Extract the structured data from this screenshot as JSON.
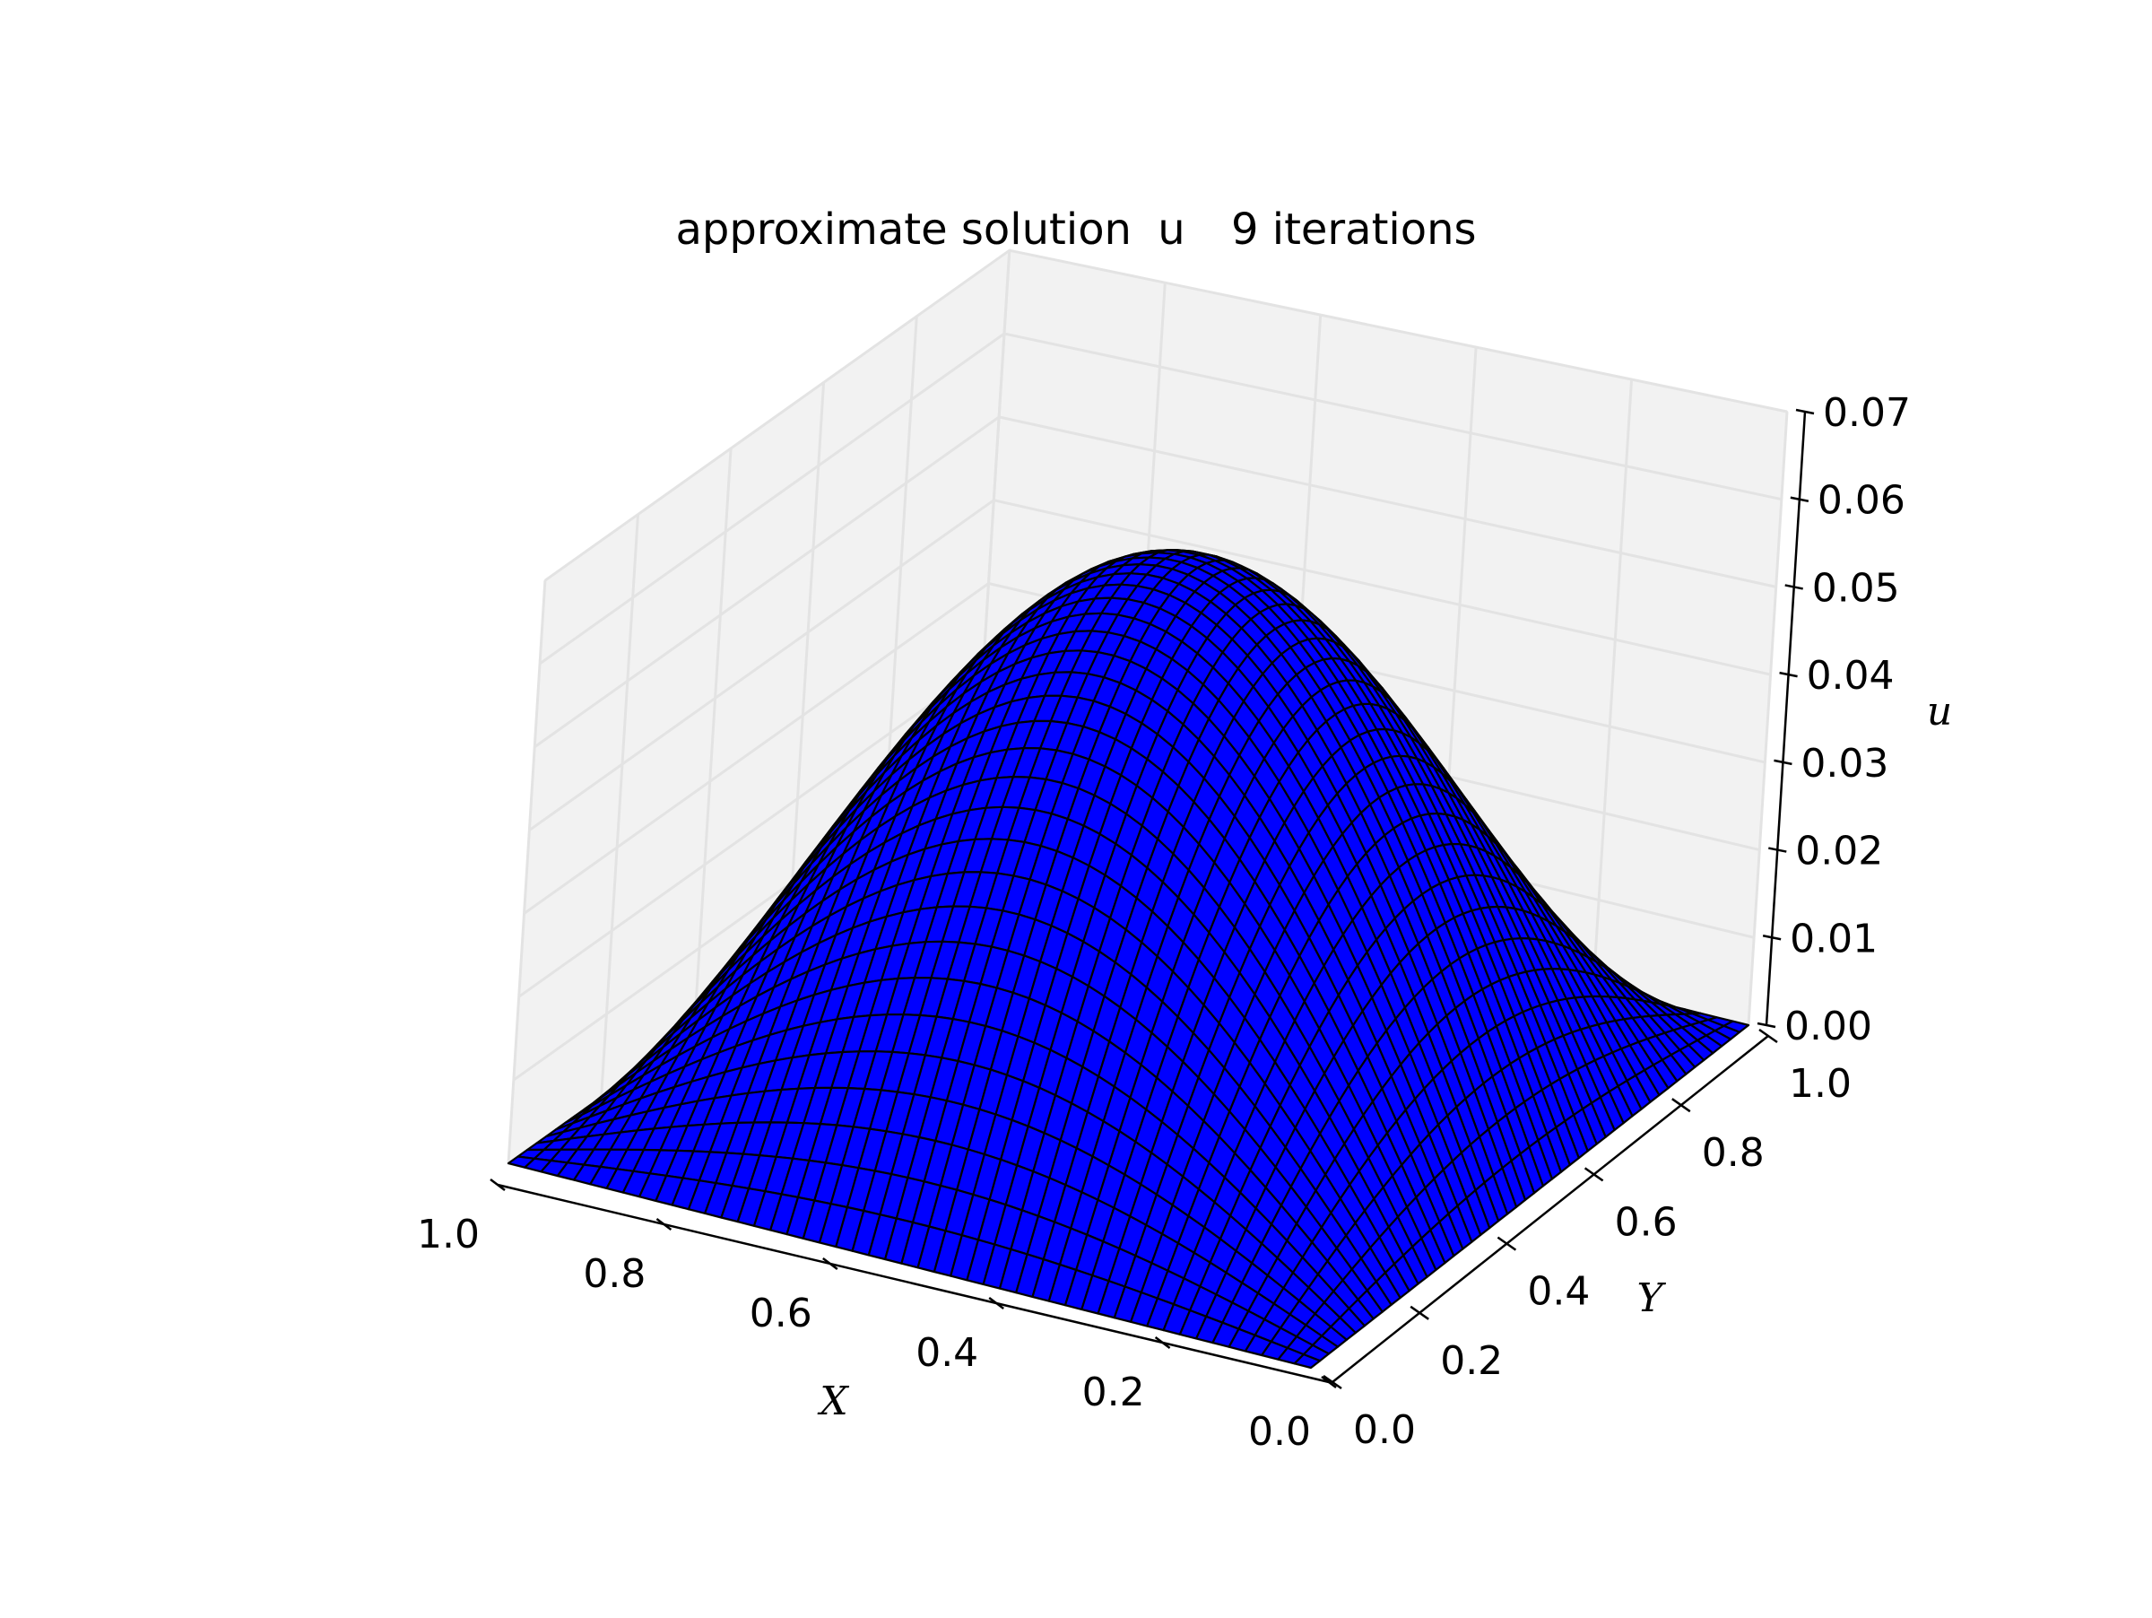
{
  "chart_data": {
    "type": "surface3d",
    "title": "approximate solution",
    "title_symbol": "u",
    "title_suffix": "9 iterations",
    "xlabel": "X",
    "ylabel": "Y",
    "zlabel": "u",
    "xlim": [
      0.0,
      1.0
    ],
    "ylim": [
      0.0,
      1.0
    ],
    "zlim": [
      0.0,
      0.07
    ],
    "x_ticks": [
      "0.0",
      "0.2",
      "0.4",
      "0.6",
      "0.8",
      "1.0"
    ],
    "y_ticks": [
      "0.0",
      "0.2",
      "0.4",
      "0.6",
      "0.8",
      "1.0"
    ],
    "z_ticks": [
      "0.00",
      "0.01",
      "0.02",
      "0.03",
      "0.04",
      "0.05",
      "0.06",
      "0.07"
    ],
    "x_tick_values": [
      0.0,
      0.2,
      0.4,
      0.6,
      0.8,
      1.0
    ],
    "y_tick_values": [
      0.0,
      0.2,
      0.4,
      0.6,
      0.8,
      1.0
    ],
    "z_tick_values": [
      0.0,
      0.01,
      0.02,
      0.03,
      0.04,
      0.05,
      0.06,
      0.07
    ],
    "surface": {
      "function": "sin(pi*x)*sin(pi*y)",
      "peak_value": 0.0625,
      "peak_at": [
        0.5,
        0.5
      ],
      "grid_points": 50,
      "face_color": "#0000ff",
      "edge_color": "#000000"
    },
    "pane_colors": [
      "#f2f2f2",
      "#e6e6e6"
    ],
    "grid": true
  }
}
